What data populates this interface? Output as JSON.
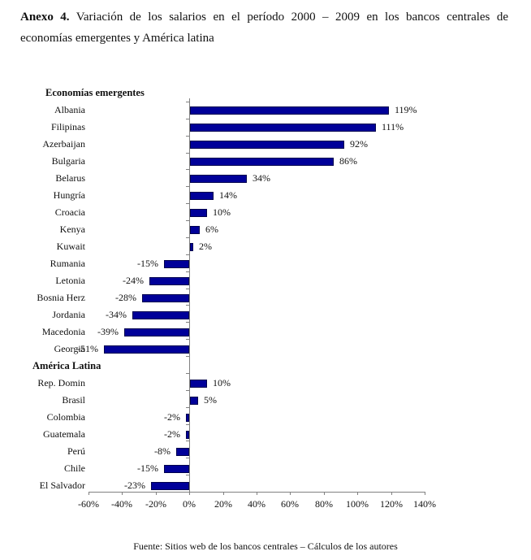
{
  "document": {
    "caption_label": "Anexo 4.",
    "caption_line1": "Variación de los salarios en el período 2000 – 2009 en los bancos centrales de",
    "caption_line2": "economías emergentes y América latina",
    "source": "Fuente: Sitios web de los bancos centrales – Cálculos de los autores"
  },
  "chart_data": {
    "type": "bar",
    "orientation": "horizontal",
    "title": "Variación de los salarios en el período 2000 – 2009 en los bancos centrales de economías emergentes y América latina",
    "xlabel": "",
    "ylabel": "",
    "xlim": [
      -60,
      140
    ],
    "grid": false,
    "legend": "none",
    "value_format": "percent",
    "bar_color": "#000099",
    "bar_border_color": "#00004d",
    "axis_color": "#808080",
    "x_ticks": [
      "-60%",
      "-40%",
      "-20%",
      "0%",
      "20%",
      "40%",
      "60%",
      "80%",
      "100%",
      "120%",
      "140%"
    ],
    "groups": [
      {
        "header": "Economías emergentes",
        "items": [
          {
            "label": "Albania",
            "value": 119,
            "value_label": "119%"
          },
          {
            "label": "Filipinas",
            "value": 111,
            "value_label": "111%"
          },
          {
            "label": "Azerbaijan",
            "value": 92,
            "value_label": "92%"
          },
          {
            "label": "Bulgaria",
            "value": 86,
            "value_label": "86%"
          },
          {
            "label": "Belarus",
            "value": 34,
            "value_label": "34%"
          },
          {
            "label": "Hungría",
            "value": 14,
            "value_label": "14%"
          },
          {
            "label": "Croacia",
            "value": 10,
            "value_label": "10%"
          },
          {
            "label": "Kenya",
            "value": 6,
            "value_label": "6%"
          },
          {
            "label": "Kuwait",
            "value": 2,
            "value_label": "2%"
          },
          {
            "label": "Rumania",
            "value": -15,
            "value_label": "-15%"
          },
          {
            "label": "Letonia",
            "value": -24,
            "value_label": "-24%"
          },
          {
            "label": "Bosnia Herz",
            "value": -28,
            "value_label": "-28%"
          },
          {
            "label": "Jordania",
            "value": -34,
            "value_label": "-34%"
          },
          {
            "label": "Macedonia",
            "value": -39,
            "value_label": "-39%"
          },
          {
            "label": "Georgia",
            "value": -51,
            "value_label": "-51%"
          }
        ]
      },
      {
        "header": "América Latina",
        "items": [
          {
            "label": "Rep. Domin",
            "value": 10,
            "value_label": "10%"
          },
          {
            "label": "Brasil",
            "value": 5,
            "value_label": "5%"
          },
          {
            "label": "Colombia",
            "value": -2,
            "value_label": "-2%"
          },
          {
            "label": "Guatemala",
            "value": -2,
            "value_label": "-2%"
          },
          {
            "label": "Perú",
            "value": -8,
            "value_label": "-8%"
          },
          {
            "label": "Chile",
            "value": -15,
            "value_label": "-15%"
          },
          {
            "label": "El Salvador",
            "value": -23,
            "value_label": "-23%"
          }
        ]
      }
    ]
  }
}
